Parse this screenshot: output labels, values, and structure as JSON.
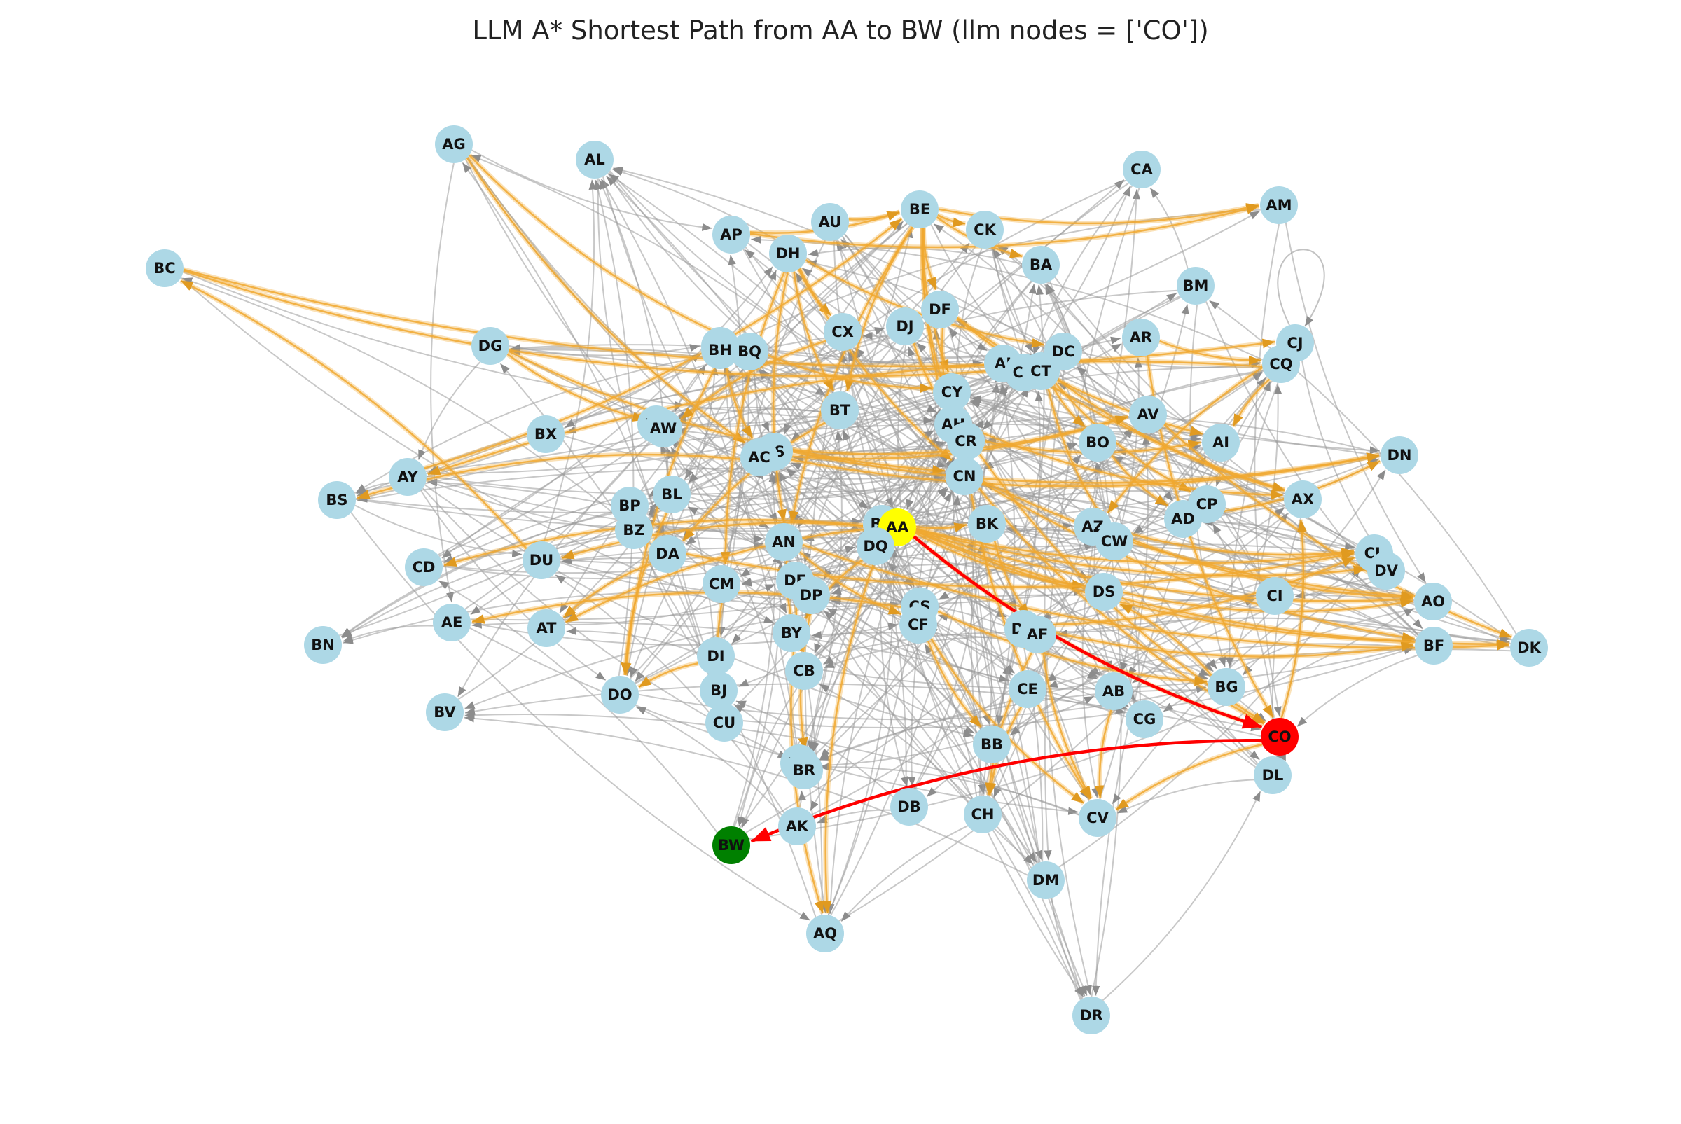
{
  "title": "LLM A* Shortest Path from AA to BW (llm nodes = ['CO'])",
  "colors": {
    "node": "#add8e6",
    "start": "#ffff00",
    "goal": "#008000",
    "llm": "#ff0000",
    "edge": "#9a9a9a",
    "explored": "#f0a830",
    "path": "#ff0000",
    "label": "#111111"
  },
  "graph": {
    "start": "AA",
    "goal": "BW",
    "llm_nodes": [
      "CO"
    ],
    "path": [
      "AA",
      "CO",
      "BW"
    ],
    "nodes": [
      "AG",
      "AL",
      "CA",
      "AM",
      "BE",
      "AU",
      "AP",
      "CK",
      "DH",
      "BA",
      "BC",
      "BM",
      "DF",
      "DJ",
      "CX",
      "AR",
      "CJ",
      "CQ",
      "DC",
      "AJ",
      "CC",
      "CT",
      "DG",
      "CZ",
      "BH",
      "BQ",
      "CY",
      "AV",
      "BT",
      "AH",
      "BD",
      "AW",
      "BX",
      "CR",
      "BO",
      "AI",
      "DN",
      "AS",
      "AC",
      "AY",
      "CN",
      "BS",
      "BL",
      "BP",
      "CP",
      "AX",
      "BU",
      "AA",
      "BK",
      "AZ",
      "AD",
      "BZ",
      "CW",
      "DQ",
      "DA",
      "DU",
      "AN",
      "CL",
      "CD",
      "DV",
      "DE",
      "CM",
      "DP",
      "CS",
      "DS",
      "CI",
      "AO",
      "CF",
      "DD",
      "AF",
      "BY",
      "AE",
      "AT",
      "BN",
      "BF",
      "DK",
      "DI",
      "CB",
      "CE",
      "AB",
      "BG",
      "BJ",
      "DO",
      "CG",
      "CU",
      "BV",
      "CO",
      "BB",
      "DT",
      "BR",
      "DL",
      "DB",
      "CH",
      "CV",
      "AK",
      "BW",
      "DM",
      "AQ",
      "DR"
    ],
    "self_loop_node": "CJ",
    "explored_edges": [
      [
        "AG",
        "AC"
      ],
      [
        "AG",
        "BQ"
      ],
      [
        "AU",
        "BE"
      ],
      [
        "AP",
        "BE"
      ],
      [
        "AP",
        "AM"
      ],
      [
        "BE",
        "AM"
      ],
      [
        "BE",
        "CK"
      ],
      [
        "BE",
        "BA"
      ],
      [
        "BE",
        "DF"
      ],
      [
        "BE",
        "CY"
      ],
      [
        "BE",
        "BT"
      ],
      [
        "BE",
        "AN"
      ],
      [
        "BE",
        "CN"
      ],
      [
        "BE",
        "AH"
      ],
      [
        "BC",
        "CJ"
      ],
      [
        "BC",
        "CC"
      ],
      [
        "DH",
        "CX"
      ],
      [
        "DH",
        "AN"
      ],
      [
        "DH",
        "CM"
      ],
      [
        "DH",
        "CN"
      ],
      [
        "DH",
        "DC"
      ],
      [
        "DH",
        "BT"
      ],
      [
        "DF",
        "CN"
      ],
      [
        "DF",
        "AX"
      ],
      [
        "DF",
        "AI"
      ],
      [
        "DJ",
        "CR"
      ],
      [
        "AR",
        "CQ"
      ],
      [
        "AR",
        "CO"
      ],
      [
        "CQ",
        "AY"
      ],
      [
        "CQ",
        "AI"
      ],
      [
        "CJ",
        "AZ"
      ],
      [
        "CT",
        "BO"
      ],
      [
        "CT",
        "CP"
      ],
      [
        "CT",
        "AX"
      ],
      [
        "CT",
        "CW"
      ],
      [
        "DG",
        "CN"
      ],
      [
        "DG",
        "AW"
      ],
      [
        "BH",
        "AC"
      ],
      [
        "BH",
        "DO"
      ],
      [
        "BQ",
        "CY"
      ],
      [
        "BT",
        "DA"
      ],
      [
        "AH",
        "AX"
      ],
      [
        "CR",
        "AI"
      ],
      [
        "CR",
        "CO"
      ],
      [
        "BO",
        "AD"
      ],
      [
        "AV",
        "DK"
      ],
      [
        "AS",
        "AV"
      ],
      [
        "AS",
        "DN"
      ],
      [
        "AC",
        "BS"
      ],
      [
        "AC",
        "AV"
      ],
      [
        "AC",
        "DN"
      ],
      [
        "AY",
        "BE"
      ],
      [
        "CN",
        "CO"
      ],
      [
        "CN",
        "BF"
      ],
      [
        "CN",
        "AO"
      ],
      [
        "CN",
        "CV"
      ],
      [
        "BU",
        "CL"
      ],
      [
        "BU",
        "DU"
      ],
      [
        "BU",
        "CD"
      ],
      [
        "BU",
        "AT"
      ],
      [
        "AA",
        "DV"
      ],
      [
        "AA",
        "AO"
      ],
      [
        "AA",
        "BF"
      ],
      [
        "AA",
        "DK"
      ],
      [
        "AA",
        "DS"
      ],
      [
        "AA",
        "CO"
      ],
      [
        "AA",
        "BK"
      ],
      [
        "AZ",
        "CL"
      ],
      [
        "AZ",
        "AO"
      ],
      [
        "AD",
        "DN"
      ],
      [
        "DQ",
        "AQ"
      ],
      [
        "DQ",
        "BY"
      ],
      [
        "DA",
        "CL"
      ],
      [
        "DA",
        "AT"
      ],
      [
        "AN",
        "DK"
      ],
      [
        "AN",
        "CF"
      ],
      [
        "AN",
        "CB"
      ],
      [
        "CS",
        "AE"
      ],
      [
        "CS",
        "BG"
      ],
      [
        "DD",
        "CL"
      ],
      [
        "DD",
        "BF"
      ],
      [
        "DS",
        "AO"
      ],
      [
        "CF",
        "BB"
      ],
      [
        "CF",
        "CV"
      ],
      [
        "AF",
        "CV"
      ],
      [
        "AF",
        "CH"
      ],
      [
        "BY",
        "AQ"
      ],
      [
        "DE",
        "CB"
      ],
      [
        "DP",
        "BR"
      ],
      [
        "CE",
        "CH"
      ],
      [
        "AB",
        "CV"
      ],
      [
        "BG",
        "DS"
      ],
      [
        "CO",
        "AX"
      ],
      [
        "CO",
        "CV"
      ],
      [
        "DI",
        "DO"
      ],
      [
        "CM",
        "CU"
      ],
      [
        "BL",
        "DO"
      ],
      [
        "DU",
        "BC"
      ],
      [
        "CX",
        "AW"
      ],
      [
        "BK",
        "AF"
      ]
    ],
    "edge_seed": 20240611,
    "edge_count": 420
  }
}
